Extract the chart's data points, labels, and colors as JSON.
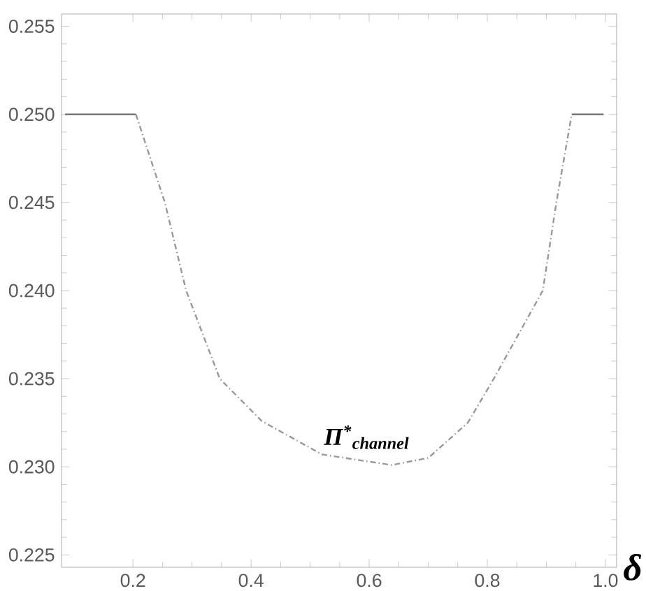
{
  "chart_data": {
    "type": "line",
    "xlabel": "δ",
    "xlim": [
      0.079,
      1.019
    ],
    "ylim": [
      0.2243,
      0.2557
    ],
    "xticks": [
      0.2,
      0.4,
      0.6,
      0.8,
      {
        "value": 1.0,
        "label": "1.0"
      }
    ],
    "yticks": [
      {
        "value": 0.225,
        "label": "0.225"
      },
      {
        "value": 0.23,
        "label": "0.230"
      },
      {
        "value": 0.235,
        "label": "0.235"
      },
      {
        "value": 0.24,
        "label": "0.240"
      },
      {
        "value": 0.245,
        "label": "0.245"
      },
      {
        "value": 0.25,
        "label": "0.250"
      },
      {
        "value": 0.255,
        "label": "0.255"
      }
    ],
    "grid": false,
    "series": [
      {
        "color": "#777777",
        "line_style": "solid",
        "x": [
          0.085,
          0.205
        ],
        "values": [
          0.25,
          0.25
        ]
      },
      {
        "color": "#999999",
        "line_style": "dashed",
        "x": [
          0.205,
          0.254,
          0.29,
          0.347,
          0.418,
          0.52,
          0.638,
          0.7,
          0.767,
          0.811,
          0.894,
          0.917,
          0.943
        ],
        "values": [
          0.25,
          0.245,
          0.24,
          0.235,
          0.2326,
          0.2307,
          0.2301,
          0.2305,
          0.2325,
          0.235,
          0.24,
          0.245,
          0.25
        ]
      },
      {
        "color": "#777777",
        "line_style": "solid",
        "x": [
          0.943,
          0.997
        ],
        "values": [
          0.25,
          0.25
        ]
      }
    ],
    "annotations": [
      "Π$^{*}$$_{channel}$"
    ]
  }
}
